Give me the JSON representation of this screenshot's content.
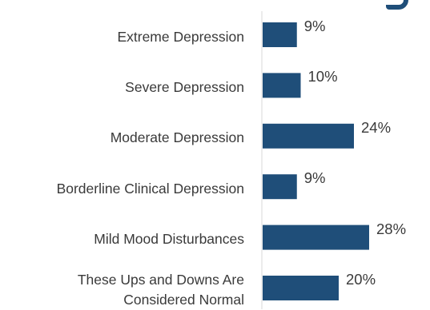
{
  "chart_data": {
    "type": "bar",
    "orientation": "horizontal",
    "categories": [
      "Extreme Depression",
      "Severe Depression",
      "Moderate Depression",
      "Borderline Clinical Depression",
      "Mild Mood Disturbances",
      "These Ups and Downs Are Considered Normal"
    ],
    "category_lines": [
      [
        "Extreme Depression"
      ],
      [
        "Severe Depression"
      ],
      [
        "Moderate Depression"
      ],
      [
        "Borderline Clinical Depression"
      ],
      [
        "Mild Mood Disturbances"
      ],
      [
        "These Ups and Downs Are",
        "Considered Normal"
      ]
    ],
    "values": [
      9,
      10,
      24,
      9,
      28,
      20
    ],
    "value_labels": [
      "9%",
      "10%",
      "24%",
      "9%",
      "28%",
      "20%"
    ],
    "xlim": [
      0,
      30
    ],
    "grid": false,
    "legend": "none",
    "bar_color": "#1f4e79",
    "axis_color": "#d9d9d9"
  }
}
